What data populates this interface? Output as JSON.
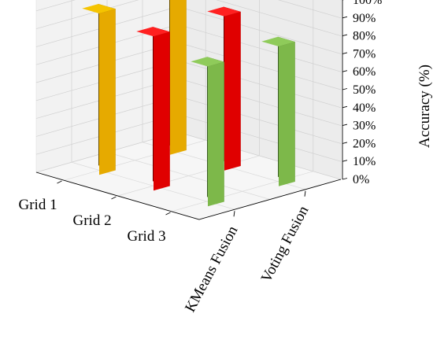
{
  "chart_data": {
    "type": "bar3d",
    "title": "",
    "categories": [
      "KMeans Fusion",
      "Voting Fusion"
    ],
    "series": [
      {
        "name": "Grid 1",
        "values": [
          90,
          90
        ],
        "colors": {
          "front": "#E6AA00",
          "side": "#6B5000",
          "top": "#F5C400"
        }
      },
      {
        "name": "Grid 2",
        "values": [
          86,
          86
        ],
        "colors": {
          "front": "#E00000",
          "side": "#6A0000",
          "top": "#FF2020"
        }
      },
      {
        "name": "Grid 3",
        "values": [
          78,
          78
        ],
        "colors": {
          "front": "#7DB84A",
          "side": "#3C5E25",
          "top": "#8FCB5A"
        }
      }
    ],
    "zlabel": "Accuracy (%)",
    "zlim": [
      0,
      100
    ],
    "zticks": [
      "0%",
      "10%",
      "20%",
      "30%",
      "40%",
      "50%",
      "60%",
      "70%",
      "80%",
      "90%",
      "100%"
    ],
    "grid": true
  }
}
